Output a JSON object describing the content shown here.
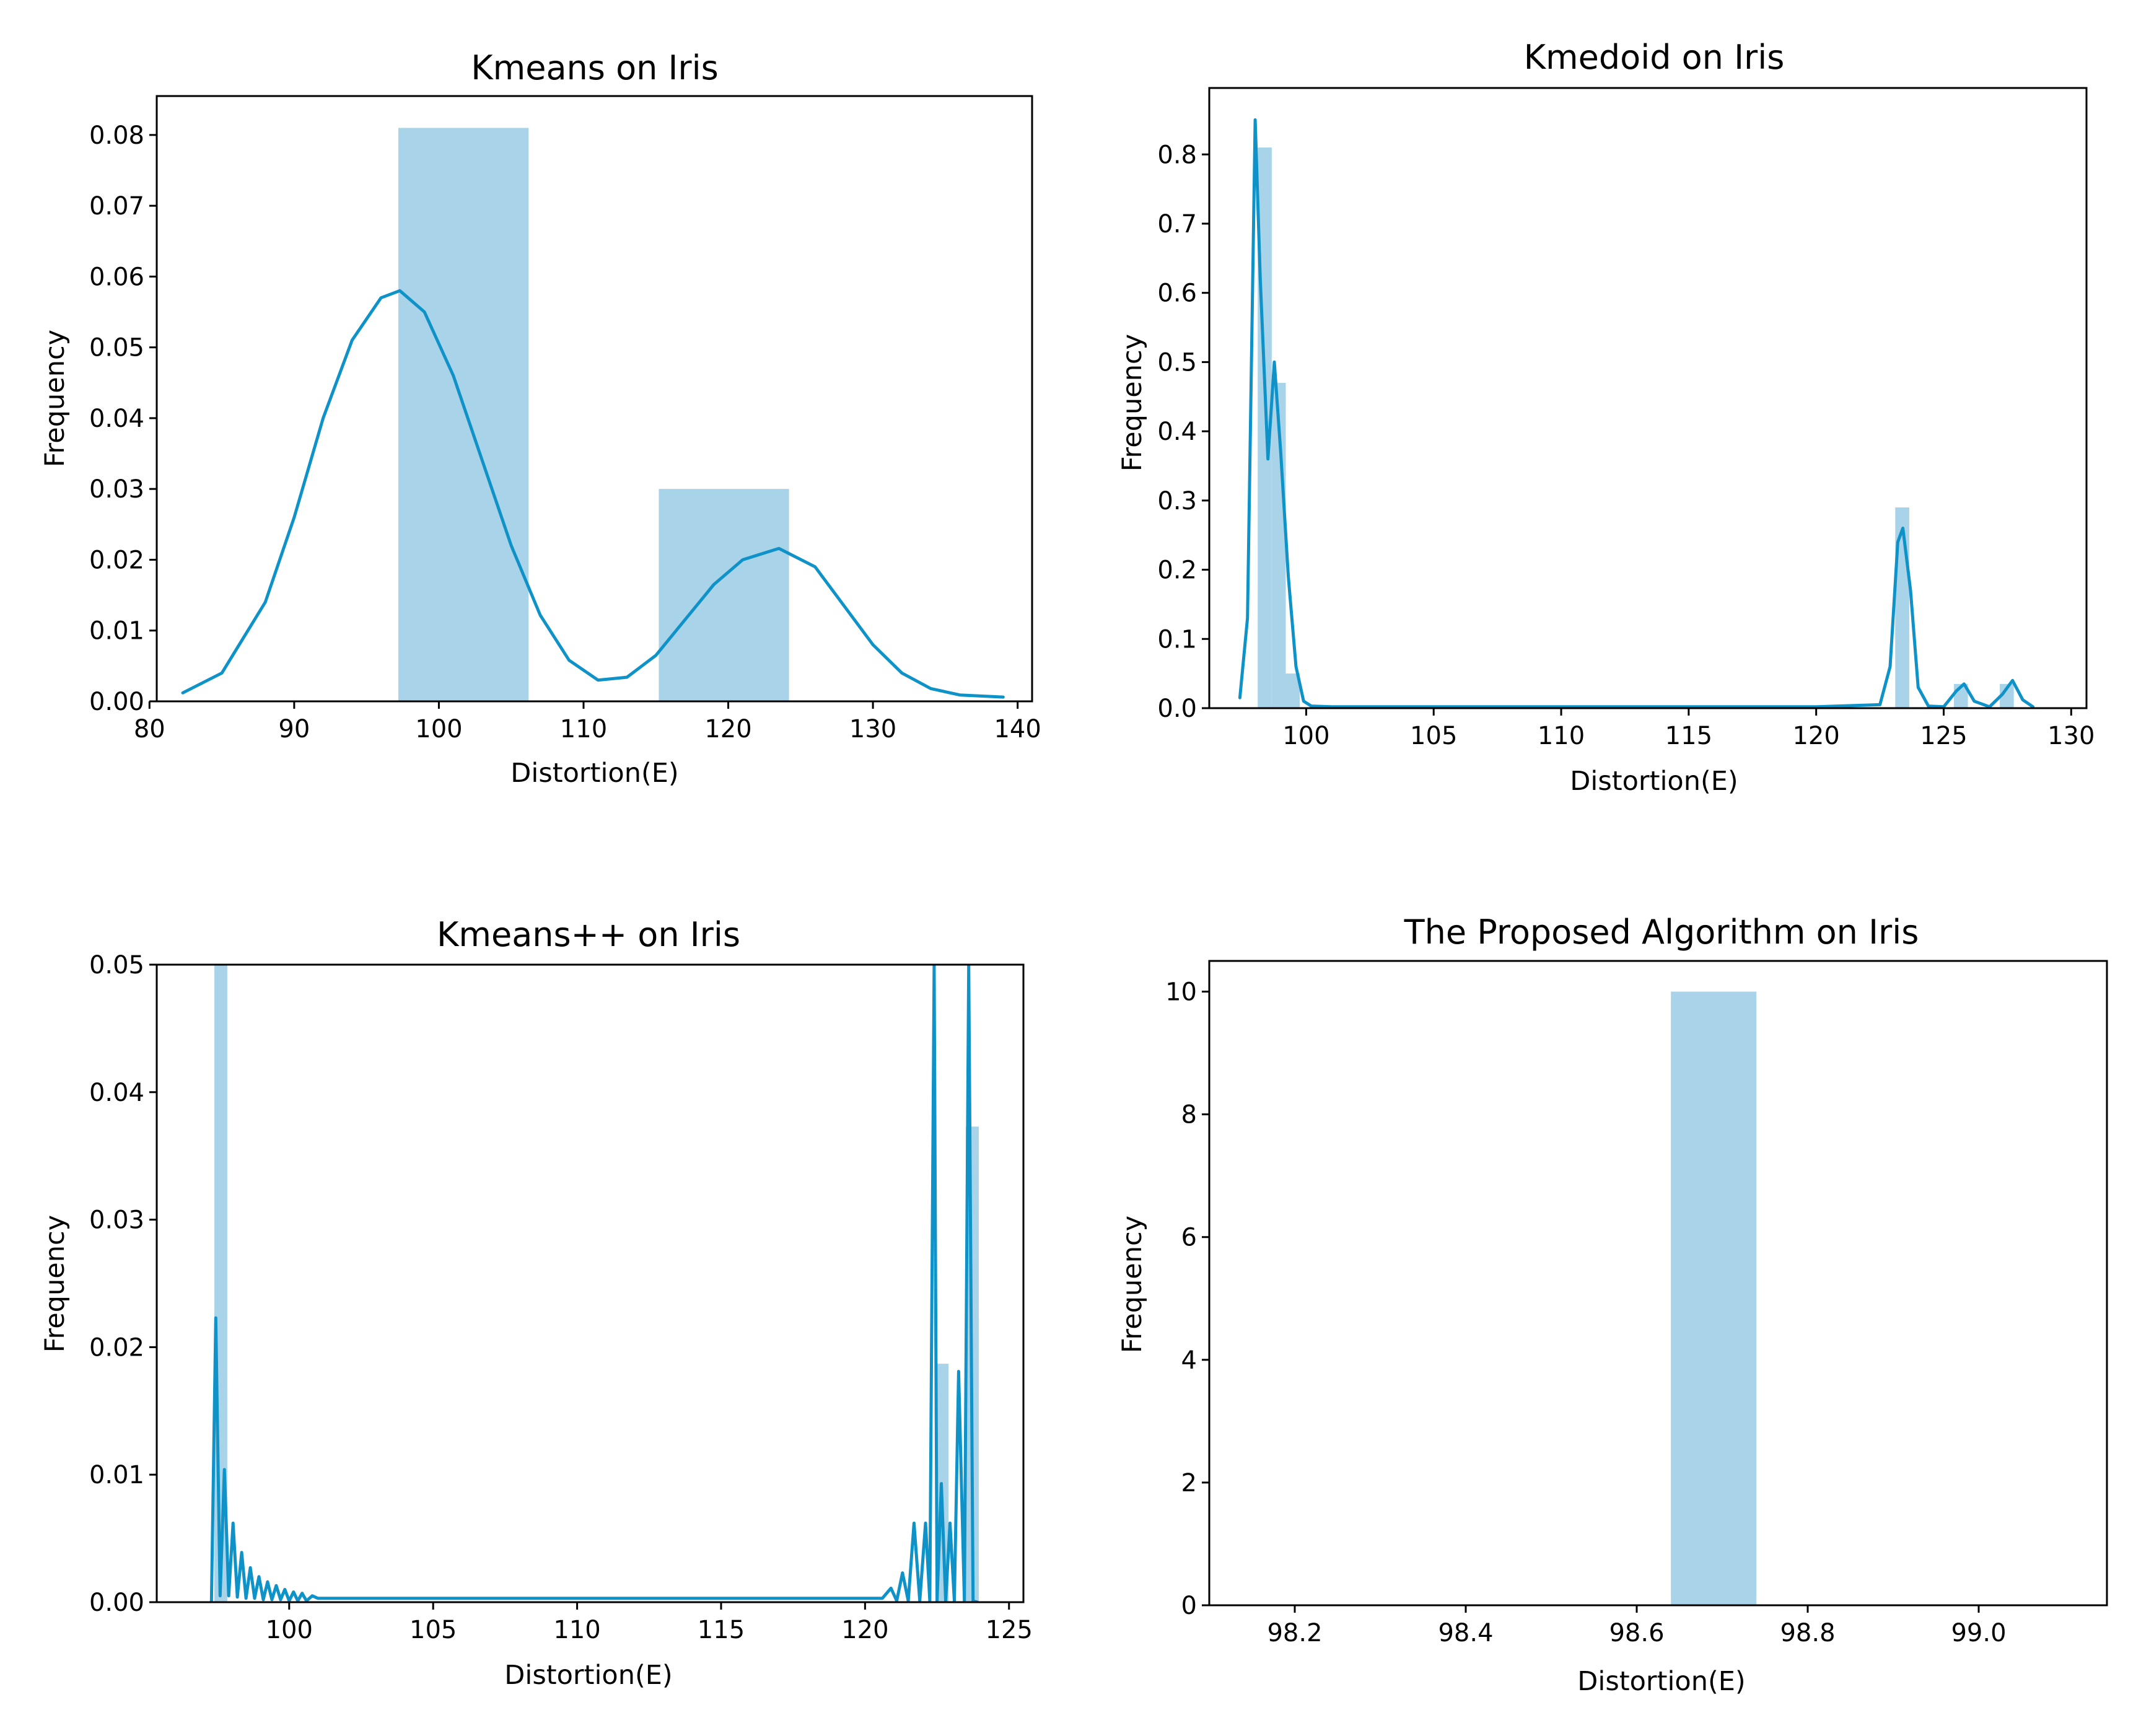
{
  "figure": {
    "background": "#ffffff",
    "bar_color": "#a8d3e8",
    "line_color": "#0e92c7",
    "axis_color": "#000000"
  },
  "chart_data": [
    {
      "type": "bar",
      "title": "Kmeans on Iris",
      "xlabel": "Distortion(E)",
      "ylabel": "Frequency",
      "xlim": [
        80.5,
        141.0
      ],
      "ylim": [
        0,
        0.0855
      ],
      "xticks": [
        80,
        90,
        100,
        110,
        120,
        130,
        140
      ],
      "xtick_labels": [
        "80",
        "90",
        "100",
        "110",
        "120",
        "130",
        "140"
      ],
      "yticks": [
        0,
        0.01,
        0.02,
        0.03,
        0.04,
        0.05,
        0.06,
        0.07,
        0.08
      ],
      "ytick_labels": [
        "0.00",
        "0.01",
        "0.02",
        "0.03",
        "0.04",
        "0.05",
        "0.06",
        "0.07",
        "0.08"
      ],
      "histogram": [
        {
          "x0": 97.2,
          "x1": 106.2,
          "value": 0.081
        },
        {
          "x0": 115.2,
          "x1": 124.2,
          "value": 0.03
        }
      ],
      "kde": {
        "x": [
          82.3,
          85,
          88,
          90,
          92,
          94,
          96,
          97.3,
          99,
          101,
          103,
          105,
          107,
          109,
          111,
          113,
          115,
          117,
          119,
          121,
          123.5,
          126,
          128,
          130,
          132,
          134,
          136,
          139
        ],
        "y": [
          0.0012,
          0.004,
          0.014,
          0.026,
          0.04,
          0.051,
          0.057,
          0.058,
          0.055,
          0.046,
          0.034,
          0.022,
          0.0122,
          0.0058,
          0.003,
          0.0034,
          0.0065,
          0.0115,
          0.0165,
          0.02,
          0.0216,
          0.019,
          0.0135,
          0.008,
          0.004,
          0.0018,
          0.0009,
          0.0006
        ]
      }
    },
    {
      "type": "bar",
      "title": "Kmedoid on Iris",
      "xlabel": "Distortion(E)",
      "ylabel": "Frequency",
      "xlim": [
        96.2,
        130.6
      ],
      "ylim": [
        0,
        0.896
      ],
      "xticks": [
        100,
        105,
        110,
        115,
        120,
        125,
        130
      ],
      "xtick_labels": [
        "100",
        "105",
        "110",
        "115",
        "120",
        "125",
        "130"
      ],
      "yticks": [
        0,
        0.1,
        0.2,
        0.3,
        0.4,
        0.5,
        0.6,
        0.7,
        0.8
      ],
      "ytick_labels": [
        "0.0",
        "0.1",
        "0.2",
        "0.3",
        "0.4",
        "0.5",
        "0.6",
        "0.7",
        "0.8"
      ],
      "histogram": [
        {
          "x0": 98.1,
          "x1": 98.65,
          "value": 0.81
        },
        {
          "x0": 98.65,
          "x1": 99.2,
          "value": 0.47
        },
        {
          "x0": 99.2,
          "x1": 99.75,
          "value": 0.05
        },
        {
          "x0": 123.1,
          "x1": 123.65,
          "value": 0.29
        },
        {
          "x0": 125.4,
          "x1": 125.95,
          "value": 0.035
        },
        {
          "x0": 127.2,
          "x1": 127.75,
          "value": 0.035
        }
      ],
      "kde": {
        "x": [
          97.4,
          97.7,
          98.0,
          98.2,
          98.5,
          98.75,
          99.0,
          99.3,
          99.6,
          99.9,
          100.2,
          101,
          110,
          120,
          122.5,
          122.9,
          123.2,
          123.4,
          123.7,
          124.0,
          124.4,
          125.0,
          125.5,
          125.8,
          126.2,
          126.8,
          127.3,
          127.7,
          128.1,
          128.5
        ],
        "y": [
          0.015,
          0.13,
          0.85,
          0.62,
          0.36,
          0.5,
          0.37,
          0.19,
          0.06,
          0.01,
          0.003,
          0.002,
          0.002,
          0.002,
          0.005,
          0.06,
          0.24,
          0.26,
          0.17,
          0.03,
          0.003,
          0.002,
          0.025,
          0.035,
          0.01,
          0.002,
          0.02,
          0.04,
          0.012,
          0.002
        ]
      }
    },
    {
      "type": "bar",
      "title": "Kmeans++ on Iris",
      "xlabel": "Distortion(E)",
      "ylabel": "Frequency",
      "xlim": [
        95.4,
        125.5
      ],
      "ylim": [
        0,
        0.05
      ],
      "xticks": [
        100,
        105,
        110,
        115,
        120,
        125
      ],
      "xtick_labels": [
        "100",
        "105",
        "110",
        "115",
        "120",
        "125"
      ],
      "yticks": [
        0,
        0.01,
        0.02,
        0.03,
        0.04,
        0.05
      ],
      "ytick_labels": [
        "0.00",
        "0.01",
        "0.02",
        "0.03",
        "0.04",
        "0.05"
      ],
      "histogram": [
        {
          "x0": 97.4,
          "x1": 97.85,
          "value": 0.05
        },
        {
          "x0": 122.45,
          "x1": 122.9,
          "value": 0.0187
        },
        {
          "x0": 123.5,
          "x1": 123.95,
          "value": 0.0373
        }
      ],
      "kde": {
        "x": [
          97.3,
          97.45,
          97.6,
          97.75,
          97.9,
          98.05,
          98.2,
          98.35,
          98.5,
          98.65,
          98.8,
          98.95,
          99.1,
          99.25,
          99.4,
          99.55,
          99.7,
          99.85,
          100,
          100.15,
          100.3,
          100.45,
          100.6,
          100.8,
          101,
          103,
          106,
          110,
          114,
          118,
          120.6,
          120.9,
          121.1,
          121.3,
          121.5,
          121.7,
          121.9,
          122.1,
          122.25,
          122.4,
          122.5,
          122.65,
          122.8,
          122.95,
          123.1,
          123.25,
          123.45,
          123.6,
          123.75,
          123.9
        ],
        "y": [
          0.0,
          0.0223,
          0.0005,
          0.0104,
          0.0005,
          0.0062,
          0.0004,
          0.0039,
          0.0003,
          0.0027,
          0.0003,
          0.002,
          0.0002,
          0.0016,
          0.0002,
          0.0013,
          0.0002,
          0.001,
          0.0001,
          0.0008,
          0.0001,
          0.0007,
          0.0001,
          0.0005,
          0.0003,
          0.0003,
          0.0003,
          0.0003,
          0.0003,
          0.0003,
          0.0003,
          0.0011,
          0.0001,
          0.0023,
          0.0001,
          0.0062,
          0.0001,
          0.0062,
          0.0001,
          0.05,
          0.0001,
          0.0093,
          0.0001,
          0.0062,
          0.0001,
          0.0181,
          0.0001,
          0.05,
          0.0001,
          0.0
        ]
      }
    },
    {
      "type": "bar",
      "title": "The Proposed Algorithm on Iris",
      "xlabel": "Distortion(E)",
      "ylabel": "Frequency",
      "xlim": [
        98.1,
        99.15
      ],
      "ylim": [
        0,
        10.5
      ],
      "xticks": [
        98.2,
        98.4,
        98.6,
        98.8,
        99.0
      ],
      "xtick_labels": [
        "98.2",
        "98.4",
        "98.6",
        "98.8",
        "99.0"
      ],
      "yticks": [
        0,
        2,
        4,
        6,
        8,
        10
      ],
      "ytick_labels": [
        "0",
        "2",
        "4",
        "6",
        "8",
        "10"
      ],
      "histogram": [
        {
          "x0": 98.64,
          "x1": 98.74,
          "value": 10
        }
      ]
    }
  ]
}
